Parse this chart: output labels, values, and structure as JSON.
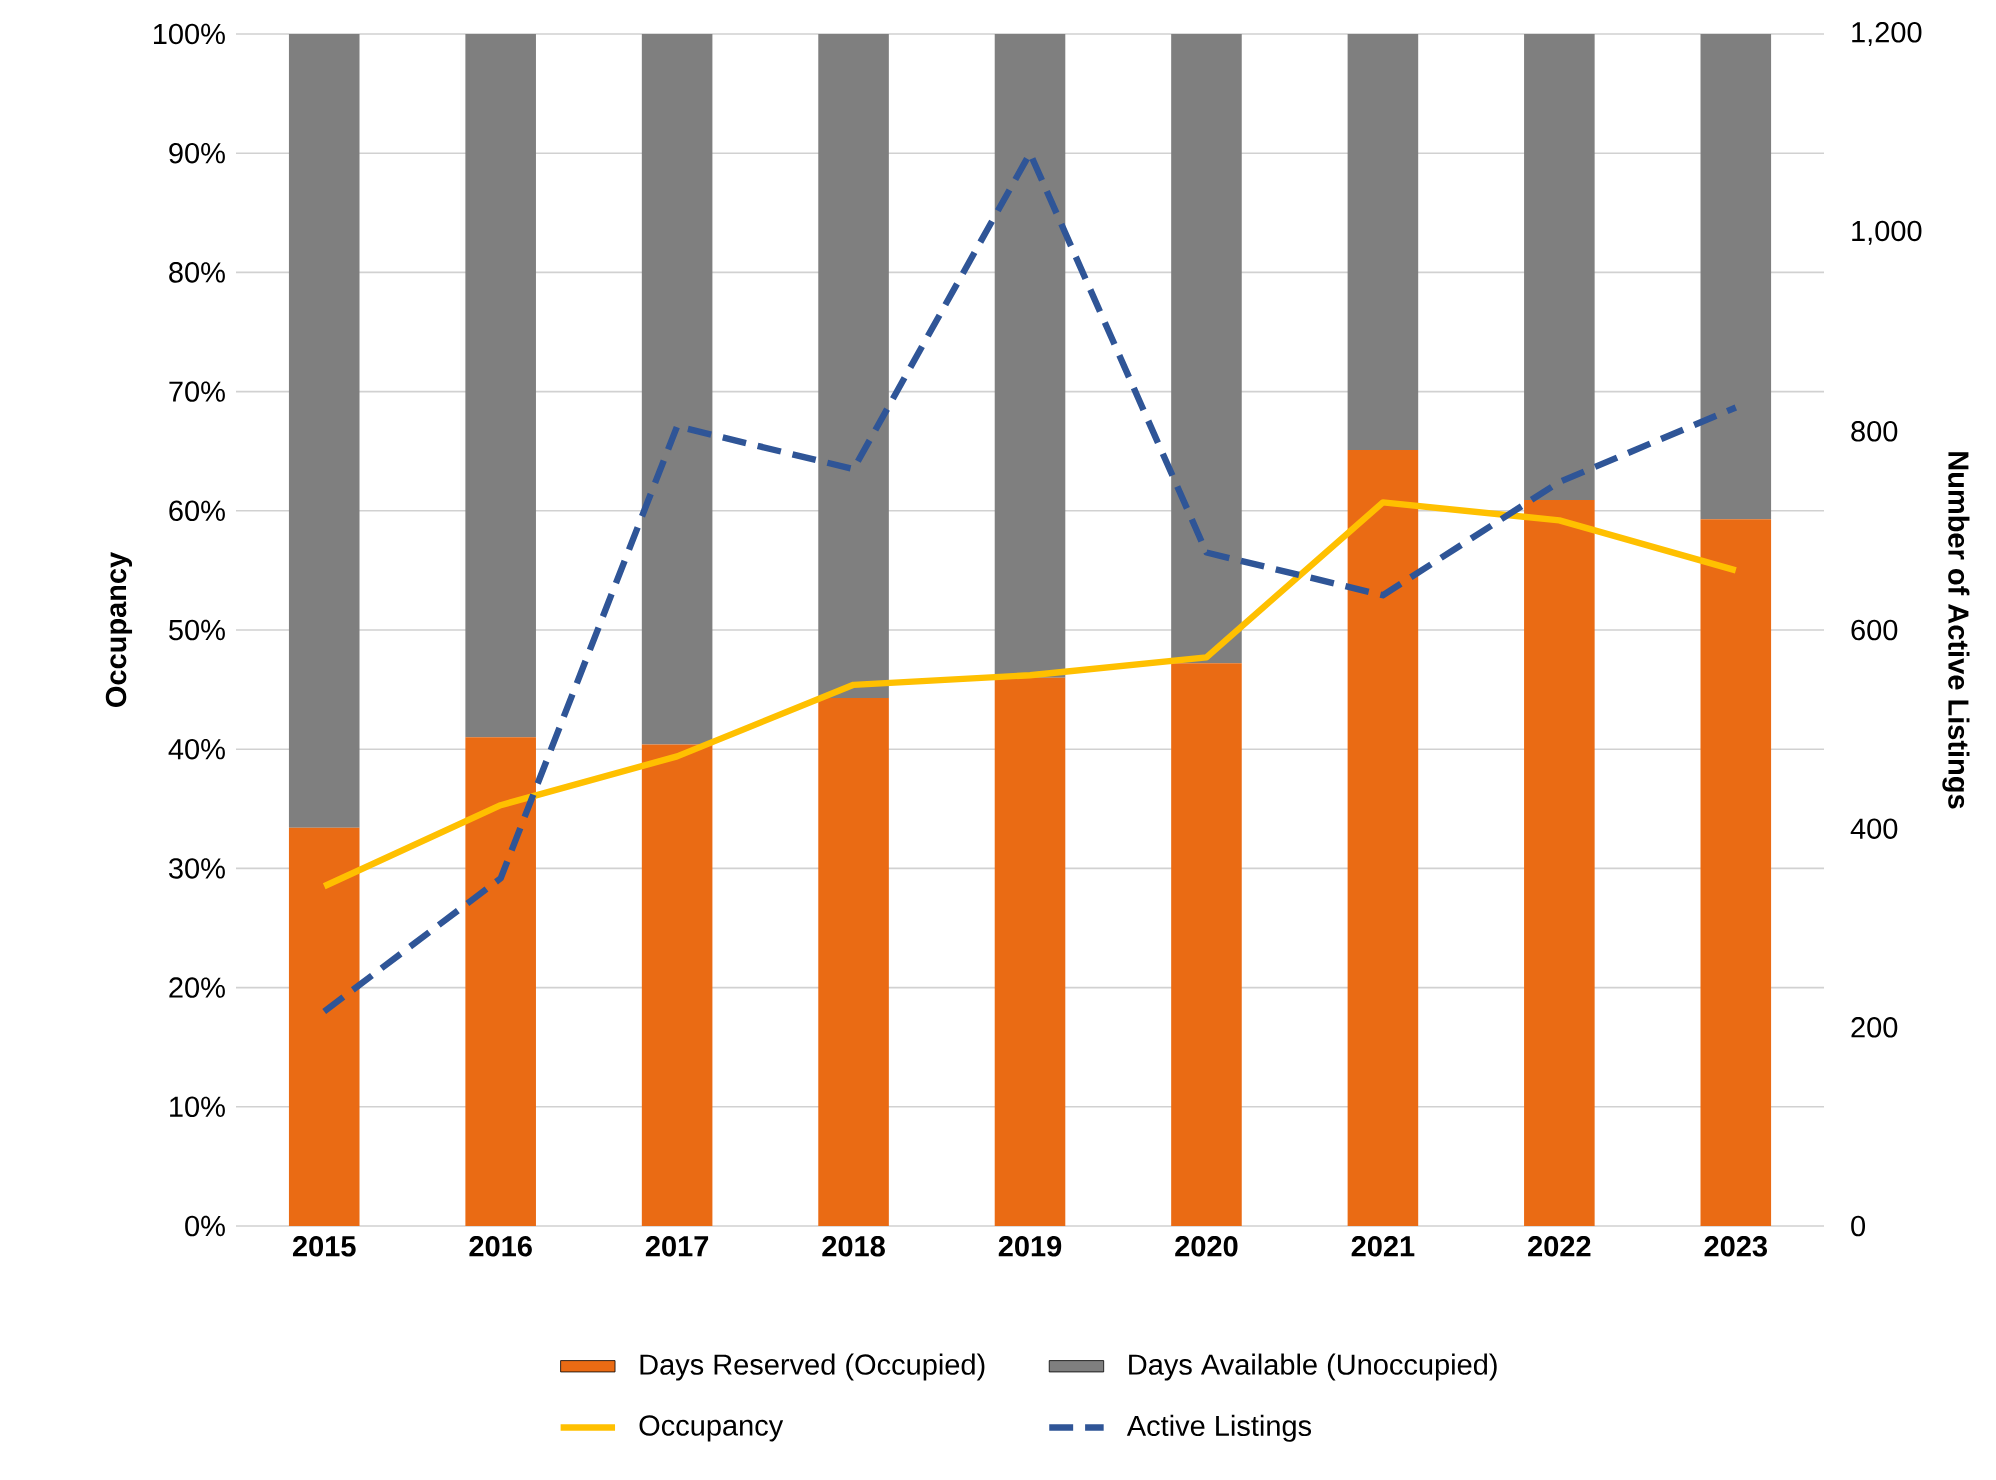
{
  "chart_data": {
    "type": "bar",
    "stacked": true,
    "ylabel": "Occupancy",
    "y2label": "Number of Active Listings",
    "categories": [
      "2015",
      "2016",
      "2017",
      "2018",
      "2019",
      "2020",
      "2021",
      "2022",
      "2023"
    ],
    "series": [
      {
        "name": "Days Reserved (Occupied)",
        "color": "#ea6b14",
        "values": [
          33.4,
          41.0,
          40.4,
          44.3,
          46.0,
          47.2,
          65.1,
          60.9,
          59.3
        ]
      },
      {
        "name": "Days Available (Unoccupied)",
        "color": "#7f7f7f",
        "values": [
          66.6,
          59.0,
          59.6,
          55.7,
          54.0,
          52.8,
          34.9,
          39.1,
          40.7
        ]
      },
      {
        "name": "Occupancy",
        "type": "line",
        "color": "#ffc000",
        "line_style": "solid",
        "values": [
          28.5,
          35.3,
          39.4,
          45.4,
          46.2,
          47.7,
          60.7,
          59.2,
          55.0
        ]
      },
      {
        "name": "Active Listings",
        "type": "line",
        "axis": "y2",
        "color": "#2f5597",
        "line_style": "dashed",
        "values": [
          216,
          350,
          805,
          762,
          1080,
          678,
          635,
          749,
          824
        ]
      }
    ],
    "ylim": [
      0,
      100
    ],
    "yticks": [
      {
        "value": 0,
        "label": "0%"
      },
      {
        "value": 10,
        "label": "10%"
      },
      {
        "value": 20,
        "label": "20%"
      },
      {
        "value": 30,
        "label": "30%"
      },
      {
        "value": 40,
        "label": "40%"
      },
      {
        "value": 50,
        "label": "50%"
      },
      {
        "value": 60,
        "label": "60%"
      },
      {
        "value": 70,
        "label": "70%"
      },
      {
        "value": 80,
        "label": "80%"
      },
      {
        "value": 90,
        "label": "90%"
      },
      {
        "value": 100,
        "label": "100%"
      }
    ],
    "y2lim": [
      0,
      1200
    ],
    "y2ticks": [
      0,
      200,
      400,
      600,
      800,
      {
        "value": 1000,
        "label": "1,000"
      },
      {
        "value": 1200,
        "label": "1,200"
      }
    ],
    "grid": "y",
    "legend": "bottom",
    "marker": "none"
  }
}
